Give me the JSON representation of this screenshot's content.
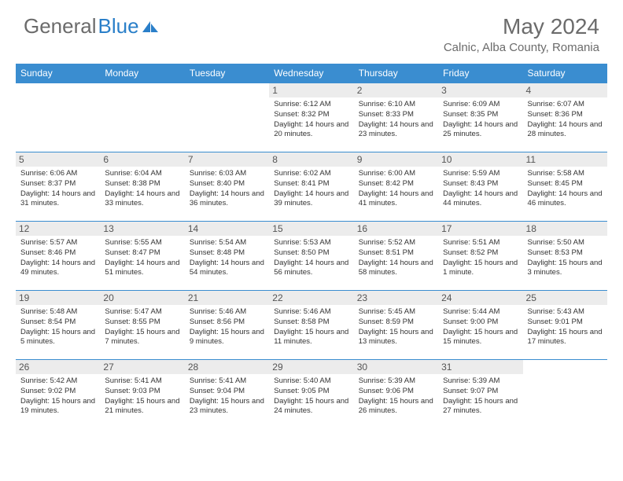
{
  "brand": {
    "part1": "General",
    "part2": "Blue"
  },
  "title": "May 2024",
  "location": "Calnic, Alba County, Romania",
  "header_bg": "#3a8dd0",
  "day_names": [
    "Sunday",
    "Monday",
    "Tuesday",
    "Wednesday",
    "Thursday",
    "Friday",
    "Saturday"
  ],
  "weeks": [
    [
      null,
      null,
      null,
      {
        "n": "1",
        "sr": "6:12 AM",
        "ss": "8:32 PM",
        "dl": "14 hours and 20 minutes."
      },
      {
        "n": "2",
        "sr": "6:10 AM",
        "ss": "8:33 PM",
        "dl": "14 hours and 23 minutes."
      },
      {
        "n": "3",
        "sr": "6:09 AM",
        "ss": "8:35 PM",
        "dl": "14 hours and 25 minutes."
      },
      {
        "n": "4",
        "sr": "6:07 AM",
        "ss": "8:36 PM",
        "dl": "14 hours and 28 minutes."
      }
    ],
    [
      {
        "n": "5",
        "sr": "6:06 AM",
        "ss": "8:37 PM",
        "dl": "14 hours and 31 minutes."
      },
      {
        "n": "6",
        "sr": "6:04 AM",
        "ss": "8:38 PM",
        "dl": "14 hours and 33 minutes."
      },
      {
        "n": "7",
        "sr": "6:03 AM",
        "ss": "8:40 PM",
        "dl": "14 hours and 36 minutes."
      },
      {
        "n": "8",
        "sr": "6:02 AM",
        "ss": "8:41 PM",
        "dl": "14 hours and 39 minutes."
      },
      {
        "n": "9",
        "sr": "6:00 AM",
        "ss": "8:42 PM",
        "dl": "14 hours and 41 minutes."
      },
      {
        "n": "10",
        "sr": "5:59 AM",
        "ss": "8:43 PM",
        "dl": "14 hours and 44 minutes."
      },
      {
        "n": "11",
        "sr": "5:58 AM",
        "ss": "8:45 PM",
        "dl": "14 hours and 46 minutes."
      }
    ],
    [
      {
        "n": "12",
        "sr": "5:57 AM",
        "ss": "8:46 PM",
        "dl": "14 hours and 49 minutes."
      },
      {
        "n": "13",
        "sr": "5:55 AM",
        "ss": "8:47 PM",
        "dl": "14 hours and 51 minutes."
      },
      {
        "n": "14",
        "sr": "5:54 AM",
        "ss": "8:48 PM",
        "dl": "14 hours and 54 minutes."
      },
      {
        "n": "15",
        "sr": "5:53 AM",
        "ss": "8:50 PM",
        "dl": "14 hours and 56 minutes."
      },
      {
        "n": "16",
        "sr": "5:52 AM",
        "ss": "8:51 PM",
        "dl": "14 hours and 58 minutes."
      },
      {
        "n": "17",
        "sr": "5:51 AM",
        "ss": "8:52 PM",
        "dl": "15 hours and 1 minute."
      },
      {
        "n": "18",
        "sr": "5:50 AM",
        "ss": "8:53 PM",
        "dl": "15 hours and 3 minutes."
      }
    ],
    [
      {
        "n": "19",
        "sr": "5:48 AM",
        "ss": "8:54 PM",
        "dl": "15 hours and 5 minutes."
      },
      {
        "n": "20",
        "sr": "5:47 AM",
        "ss": "8:55 PM",
        "dl": "15 hours and 7 minutes."
      },
      {
        "n": "21",
        "sr": "5:46 AM",
        "ss": "8:56 PM",
        "dl": "15 hours and 9 minutes."
      },
      {
        "n": "22",
        "sr": "5:46 AM",
        "ss": "8:58 PM",
        "dl": "15 hours and 11 minutes."
      },
      {
        "n": "23",
        "sr": "5:45 AM",
        "ss": "8:59 PM",
        "dl": "15 hours and 13 minutes."
      },
      {
        "n": "24",
        "sr": "5:44 AM",
        "ss": "9:00 PM",
        "dl": "15 hours and 15 minutes."
      },
      {
        "n": "25",
        "sr": "5:43 AM",
        "ss": "9:01 PM",
        "dl": "15 hours and 17 minutes."
      }
    ],
    [
      {
        "n": "26",
        "sr": "5:42 AM",
        "ss": "9:02 PM",
        "dl": "15 hours and 19 minutes."
      },
      {
        "n": "27",
        "sr": "5:41 AM",
        "ss": "9:03 PM",
        "dl": "15 hours and 21 minutes."
      },
      {
        "n": "28",
        "sr": "5:41 AM",
        "ss": "9:04 PM",
        "dl": "15 hours and 23 minutes."
      },
      {
        "n": "29",
        "sr": "5:40 AM",
        "ss": "9:05 PM",
        "dl": "15 hours and 24 minutes."
      },
      {
        "n": "30",
        "sr": "5:39 AM",
        "ss": "9:06 PM",
        "dl": "15 hours and 26 minutes."
      },
      {
        "n": "31",
        "sr": "5:39 AM",
        "ss": "9:07 PM",
        "dl": "15 hours and 27 minutes."
      },
      null
    ]
  ],
  "labels": {
    "sunrise": "Sunrise: ",
    "sunset": "Sunset: ",
    "daylight": "Daylight: "
  }
}
